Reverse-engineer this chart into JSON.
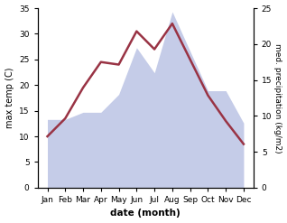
{
  "months": [
    "Jan",
    "Feb",
    "Mar",
    "Apr",
    "May",
    "Jun",
    "Jul",
    "Aug",
    "Sep",
    "Oct",
    "Nov",
    "Dec"
  ],
  "x": [
    0,
    1,
    2,
    3,
    4,
    5,
    6,
    7,
    8,
    9,
    10,
    11
  ],
  "temperature": [
    10.0,
    13.5,
    19.5,
    24.5,
    24.0,
    30.5,
    27.0,
    32.0,
    25.0,
    18.0,
    13.0,
    8.5
  ],
  "precipitation": [
    9.5,
    9.5,
    10.5,
    10.5,
    13.0,
    19.5,
    16.0,
    24.5,
    19.0,
    13.5,
    13.5,
    9.0
  ],
  "temp_color": "#993344",
  "precip_fill_color": "#c5cce8",
  "ylabel_left": "max temp (C)",
  "ylabel_right": "med. precipitation (kg/m2)",
  "xlabel": "date (month)",
  "ylim_left": [
    0,
    35
  ],
  "ylim_right": [
    0,
    25
  ],
  "yticks_left": [
    0,
    5,
    10,
    15,
    20,
    25,
    30,
    35
  ],
  "yticks_right": [
    0,
    5,
    10,
    15,
    20,
    25
  ],
  "background_color": "#ffffff"
}
